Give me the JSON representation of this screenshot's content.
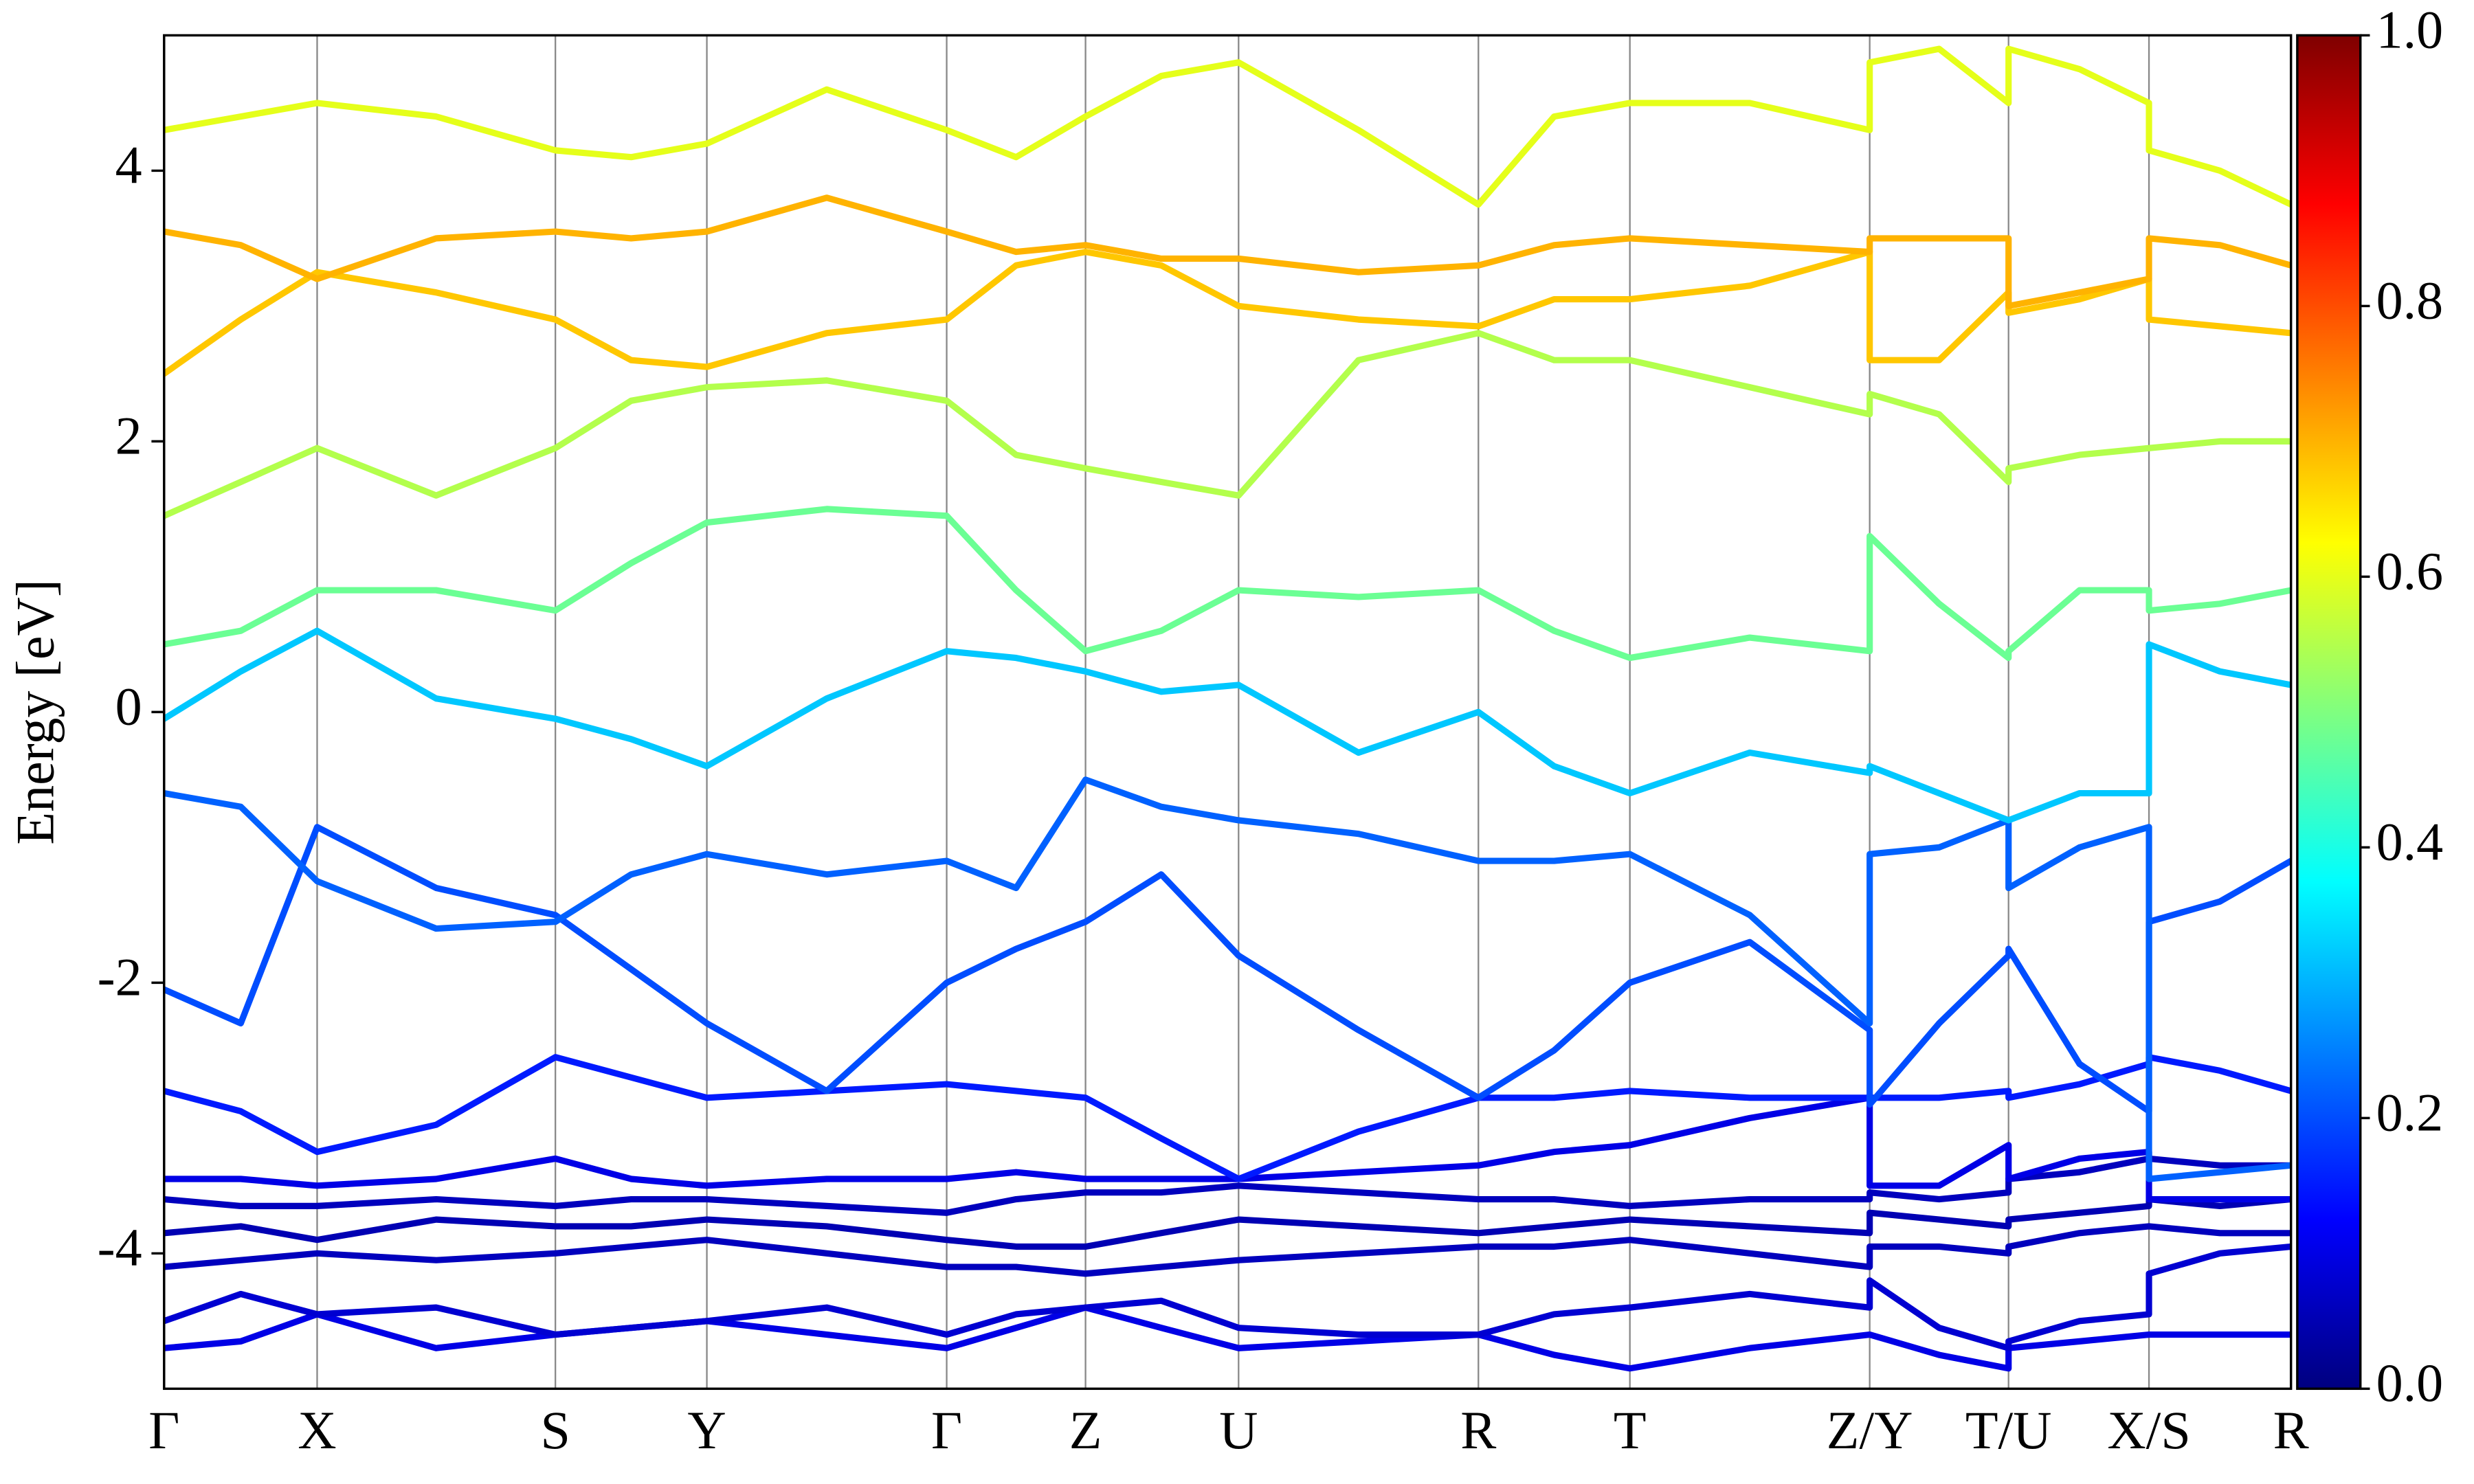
{
  "chart_data": {
    "type": "band",
    "ylabel": "Energy [eV]",
    "ylim": [
      -5,
      5
    ],
    "yticks": [
      -4,
      -2,
      0,
      2,
      4
    ],
    "xlim": [
      0,
      6.74
    ],
    "xticks": [
      {
        "value": 0,
        "label": "Γ"
      },
      {
        "value": 0.485,
        "label": "X"
      },
      {
        "value": 1.24,
        "label": "S"
      },
      {
        "value": 1.72,
        "label": "Y"
      },
      {
        "value": 2.48,
        "label": "Γ"
      },
      {
        "value": 2.92,
        "label": "Z"
      },
      {
        "value": 3.405,
        "label": "U"
      },
      {
        "value": 4.165,
        "label": "R"
      },
      {
        "value": 4.645,
        "label": "T"
      },
      {
        "value": 5.405,
        "label": "Z/Y"
      },
      {
        "value": 5.845,
        "label": "T/U"
      },
      {
        "value": 6.29,
        "label": "X/S"
      },
      {
        "value": 6.74,
        "label": "R"
      }
    ],
    "x": [
      0,
      0.243,
      0.485,
      0.862,
      1.24,
      1.48,
      1.72,
      2.1,
      2.48,
      2.7,
      2.92,
      3.16,
      3.405,
      3.785,
      4.165,
      4.405,
      4.645,
      5.025,
      5.405,
      5.405,
      5.625,
      5.845,
      5.845,
      6.07,
      6.29,
      6.29,
      6.515,
      6.74
    ],
    "colormap": "jet",
    "colorbar": {
      "lim": [
        0,
        1
      ],
      "ticks": [
        {
          "value": 0,
          "label": "0.0"
        },
        0.2,
        0.4,
        0.6,
        0.8,
        {
          "value": 1,
          "label": "1.0"
        }
      ]
    },
    "series": [
      {
        "weight": 0.1,
        "values": [
          -4.7,
          -4.65,
          -4.45,
          -4.7,
          -4.6,
          -4.55,
          -4.5,
          -4.6,
          -4.7,
          -4.55,
          -4.4,
          -4.55,
          -4.7,
          -4.65,
          -4.6,
          -4.75,
          -4.85,
          -4.7,
          -4.6,
          -4.6,
          -4.75,
          -4.85,
          -4.7,
          -4.65,
          -4.6,
          -4.6,
          -4.6,
          -4.6
        ]
      },
      {
        "weight": 0.08,
        "values": [
          -4.5,
          -4.3,
          -4.45,
          -4.4,
          -4.6,
          -4.55,
          -4.5,
          -4.4,
          -4.6,
          -4.45,
          -4.4,
          -4.35,
          -4.55,
          -4.6,
          -4.6,
          -4.45,
          -4.4,
          -4.3,
          -4.4,
          -4.2,
          -4.55,
          -4.7,
          -4.65,
          -4.5,
          -4.45,
          -4.15,
          -4.0,
          -3.95
        ]
      },
      {
        "weight": 0.06,
        "values": [
          -4.1,
          -4.05,
          -4.0,
          -4.05,
          -4.0,
          -3.95,
          -3.9,
          -4.0,
          -4.1,
          -4.1,
          -4.15,
          -4.1,
          -4.05,
          -4.0,
          -3.95,
          -3.95,
          -3.9,
          -4.0,
          -4.1,
          -3.95,
          -3.95,
          -4.0,
          -3.95,
          -3.85,
          -3.8,
          -3.8,
          -3.85,
          -3.85
        ]
      },
      {
        "weight": 0.05,
        "values": [
          -3.85,
          -3.8,
          -3.9,
          -3.75,
          -3.8,
          -3.8,
          -3.75,
          -3.8,
          -3.9,
          -3.95,
          -3.95,
          -3.85,
          -3.75,
          -3.8,
          -3.85,
          -3.8,
          -3.75,
          -3.8,
          -3.85,
          -3.7,
          -3.75,
          -3.8,
          -3.75,
          -3.7,
          -3.65,
          -3.6,
          -3.65,
          -3.6
        ]
      },
      {
        "weight": 0.06,
        "values": [
          -3.6,
          -3.65,
          -3.65,
          -3.6,
          -3.65,
          -3.6,
          -3.6,
          -3.65,
          -3.7,
          -3.6,
          -3.55,
          -3.55,
          -3.5,
          -3.55,
          -3.6,
          -3.6,
          -3.65,
          -3.6,
          -3.6,
          -3.55,
          -3.6,
          -3.55,
          -3.45,
          -3.4,
          -3.3,
          -3.3,
          -3.35,
          -3.35
        ]
      },
      {
        "weight": 0.1,
        "values": [
          -3.45,
          -3.45,
          -3.5,
          -3.45,
          -3.3,
          -3.45,
          -3.5,
          -3.45,
          -3.45,
          -3.4,
          -3.45,
          -3.45,
          -3.45,
          -3.4,
          -3.35,
          -3.25,
          -3.2,
          -3.0,
          -2.85,
          -3.5,
          -3.5,
          -3.2,
          -3.45,
          -3.3,
          -3.25,
          -3.6,
          -3.6,
          -3.6
        ]
      },
      {
        "weight": 0.15,
        "values": [
          -2.8,
          -2.95,
          -3.25,
          -3.05,
          -2.55,
          -2.7,
          -2.85,
          -2.8,
          -2.75,
          -2.8,
          -2.85,
          -3.15,
          -3.45,
          -3.1,
          -2.85,
          -2.85,
          -2.8,
          -2.85,
          -2.85,
          -2.85,
          -2.85,
          -2.8,
          -2.85,
          -2.75,
          -2.6,
          -2.55,
          -2.65,
          -2.8
        ]
      },
      {
        "weight": 0.2,
        "values": [
          -2.05,
          -2.3,
          -0.85,
          -1.3,
          -1.5,
          -1.9,
          -2.3,
          -2.8,
          -2.0,
          -1.75,
          -1.55,
          -1.2,
          -1.8,
          -2.35,
          -2.85,
          -2.5,
          -2.0,
          -1.7,
          -2.35,
          -2.9,
          -2.3,
          -1.8,
          -1.75,
          -2.6,
          -2.95,
          -1.55,
          -1.4,
          -1.1
        ]
      },
      {
        "weight": 0.22,
        "values": [
          -0.6,
          -0.7,
          -1.25,
          -1.6,
          -1.55,
          -1.2,
          -1.05,
          -1.2,
          -1.1,
          -1.3,
          -0.5,
          -0.7,
          -0.8,
          -0.9,
          -1.1,
          -1.1,
          -1.05,
          -1.5,
          -2.3,
          -1.05,
          -1.0,
          -0.8,
          -1.3,
          -1.0,
          -0.85,
          -3.45,
          -3.4,
          -3.35
        ]
      },
      {
        "weight": 0.32,
        "values": [
          -0.05,
          0.3,
          0.6,
          0.1,
          -0.05,
          -0.2,
          -0.4,
          0.1,
          0.45,
          0.4,
          0.3,
          0.15,
          0.2,
          -0.3,
          0.0,
          -0.4,
          -0.6,
          -0.3,
          -0.45,
          -0.4,
          -0.6,
          -0.8,
          -0.8,
          -0.6,
          -0.6,
          0.5,
          0.3,
          0.2
        ]
      },
      {
        "weight": 0.48,
        "values": [
          0.5,
          0.6,
          0.9,
          0.9,
          0.75,
          1.1,
          1.4,
          1.5,
          1.45,
          0.9,
          0.45,
          0.6,
          0.9,
          0.85,
          0.9,
          0.6,
          0.4,
          0.55,
          0.45,
          1.3,
          0.8,
          0.4,
          0.45,
          0.9,
          0.9,
          0.75,
          0.8,
          0.9
        ]
      },
      {
        "weight": 0.55,
        "values": [
          1.45,
          1.7,
          1.95,
          1.6,
          1.95,
          2.3,
          2.4,
          2.45,
          2.3,
          1.9,
          1.8,
          1.7,
          1.6,
          2.6,
          2.8,
          2.6,
          2.6,
          2.4,
          2.2,
          2.35,
          2.2,
          1.7,
          1.8,
          1.9,
          1.95,
          1.95,
          2.0,
          2.0
        ]
      },
      {
        "weight": 0.68,
        "values": [
          2.5,
          2.9,
          3.25,
          3.1,
          2.9,
          2.6,
          2.55,
          2.8,
          2.9,
          3.3,
          3.4,
          3.3,
          3.0,
          2.9,
          2.85,
          3.05,
          3.05,
          3.15,
          3.4,
          2.6,
          2.6,
          3.1,
          2.95,
          3.05,
          3.2,
          2.9,
          2.85,
          2.8
        ]
      },
      {
        "weight": 0.7,
        "values": [
          3.55,
          3.45,
          3.2,
          3.5,
          3.55,
          3.5,
          3.55,
          3.8,
          3.55,
          3.4,
          3.45,
          3.35,
          3.35,
          3.25,
          3.3,
          3.45,
          3.5,
          3.45,
          3.4,
          3.5,
          3.5,
          3.5,
          3.0,
          3.1,
          3.2,
          3.5,
          3.45,
          3.3
        ]
      },
      {
        "weight": 0.6,
        "values": [
          4.3,
          4.4,
          4.5,
          4.4,
          4.15,
          4.1,
          4.2,
          4.6,
          4.3,
          4.1,
          4.4,
          4.7,
          4.8,
          4.3,
          3.75,
          4.4,
          4.5,
          4.5,
          4.3,
          4.8,
          4.9,
          4.5,
          4.9,
          4.75,
          4.5,
          4.15,
          4.0,
          3.75
        ]
      }
    ]
  }
}
